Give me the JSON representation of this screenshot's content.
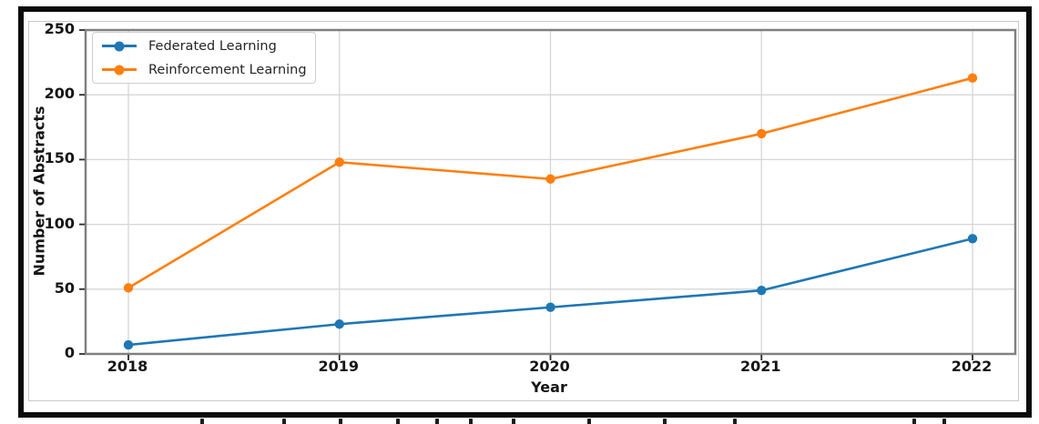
{
  "chart_data": {
    "type": "line",
    "x": [
      2018,
      2019,
      2020,
      2021,
      2022
    ],
    "x_tick_labels": [
      "2018",
      "2019",
      "2020",
      "2021",
      "2022"
    ],
    "series": [
      {
        "name": "Federated Learning",
        "color": "#1f77b4",
        "values": [
          7,
          23,
          36,
          49,
          89
        ]
      },
      {
        "name": "Reinforcement Learning",
        "color": "#ff7f0e",
        "values": [
          51,
          148,
          135,
          170,
          213
        ]
      }
    ],
    "xlabel": "Year",
    "ylabel": "Number of Abstracts",
    "ylim": [
      0,
      250
    ],
    "yticks": [
      0,
      50,
      100,
      150,
      200,
      250
    ],
    "grid": true,
    "legend_position": "upper left",
    "colors": {
      "grid": "#d6d6d6",
      "spine": "#808080",
      "tick": "#2b2b2b",
      "tick_text": "#151515",
      "frame": "#0c0c0c",
      "figure_border": "#c9c9c9"
    }
  }
}
